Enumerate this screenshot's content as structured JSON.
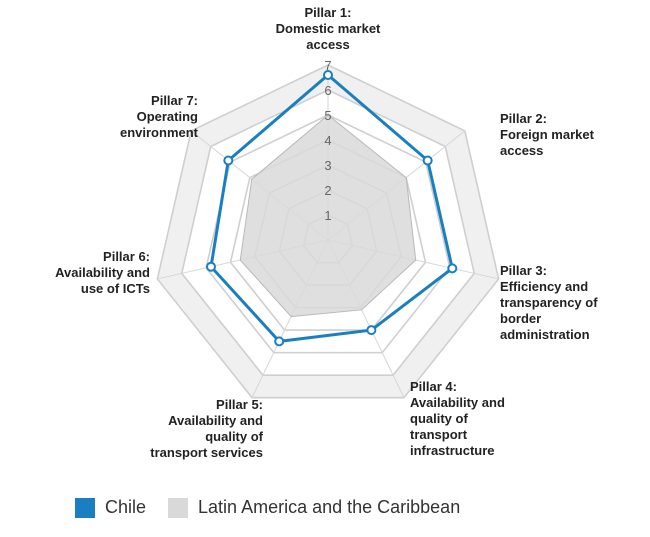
{
  "chart_data": {
    "type": "radar",
    "axes": [
      [
        "Pillar 1:",
        "Domestic market",
        "access"
      ],
      [
        "Pillar 2:",
        "Foreign market",
        "access"
      ],
      [
        "Pillar 3:",
        "Efficiency and",
        "transparency of",
        "border",
        "administration"
      ],
      [
        "Pillar 4:",
        "Availability and",
        "quality of",
        "transport",
        "infrastructure"
      ],
      [
        "Pillar 5:",
        "Availability and",
        "quality of",
        "transport services"
      ],
      [
        "Pillar 6:",
        "Availability and",
        "use of ICTs"
      ],
      [
        "Pillar 7:",
        "Operating",
        "environment"
      ]
    ],
    "rlim": [
      0,
      7
    ],
    "ticks": [
      "1",
      "2",
      "3",
      "4",
      "5",
      "6",
      "7"
    ],
    "series": [
      {
        "name": "Latin America and the Caribbean",
        "values": [
          5.0,
          4.0,
          3.6,
          3.1,
          3.4,
          3.6,
          3.9
        ],
        "color": "#d9d9d9"
      },
      {
        "name": "Chile",
        "values": [
          6.6,
          5.1,
          5.1,
          4.0,
          4.5,
          4.8,
          5.1
        ],
        "color": "#1a7fc1"
      }
    ],
    "grid": true,
    "legend_position": "bottom-left"
  },
  "legend": {
    "items": [
      {
        "label": "Chile",
        "color": "#1a7fc1"
      },
      {
        "label": "Latin America and the Caribbean",
        "color": "#d9d9d9"
      }
    ]
  }
}
